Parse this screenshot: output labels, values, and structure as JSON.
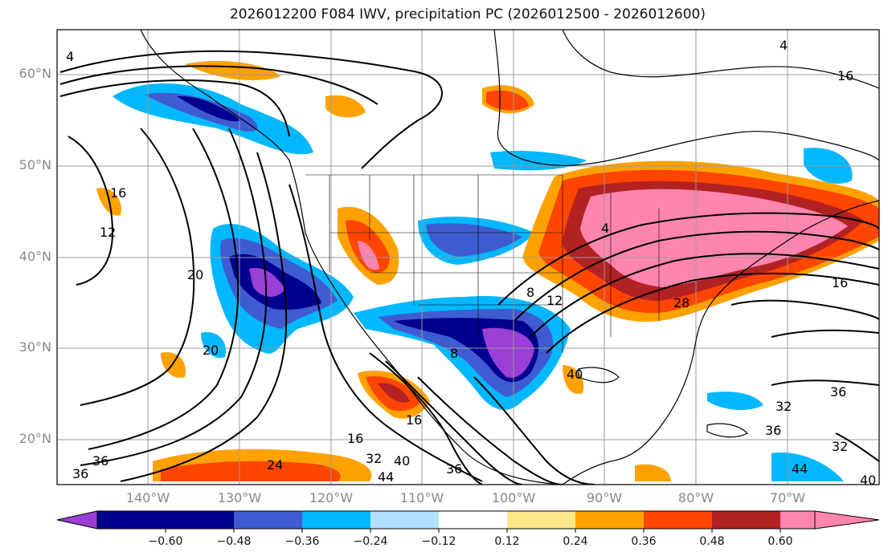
{
  "title": "2026012200 F084 IWV, precipitation PC (2026012500 - 2026012600)",
  "lat_labels": [
    "60°N",
    "50°N",
    "40°N",
    "30°N",
    "20°N"
  ],
  "lon_labels": [
    "140°W",
    "130°W",
    "120°W",
    "110°W",
    "100°W",
    "90°W",
    "80°W",
    "70°W"
  ],
  "colorbar": {
    "ticks": [
      "−0.60",
      "−0.48",
      "−0.36",
      "−0.24",
      "−0.12",
      "0.12",
      "0.24",
      "0.36",
      "0.48",
      "0.60"
    ],
    "colors": [
      "#9b3fd6",
      "#000090",
      "#3f5bd0",
      "#00b8ff",
      "#b0e0ff",
      "#ffffff",
      "#fde68a",
      "#ffa200",
      "#ff4500",
      "#b22222",
      "#ff85b0"
    ]
  },
  "contour_labels": [
    "4",
    "16",
    "12",
    "20",
    "20",
    "16",
    "16",
    "24",
    "32",
    "36",
    "36",
    "40",
    "44",
    "36",
    "8",
    "12",
    "8",
    "4",
    "28",
    "16",
    "36",
    "32",
    "36",
    "32",
    "44",
    "40",
    "4",
    "40",
    "16"
  ],
  "map_extent": {
    "lon_min": -150,
    "lon_max": -60,
    "lat_min": 15,
    "lat_max": 65
  }
}
